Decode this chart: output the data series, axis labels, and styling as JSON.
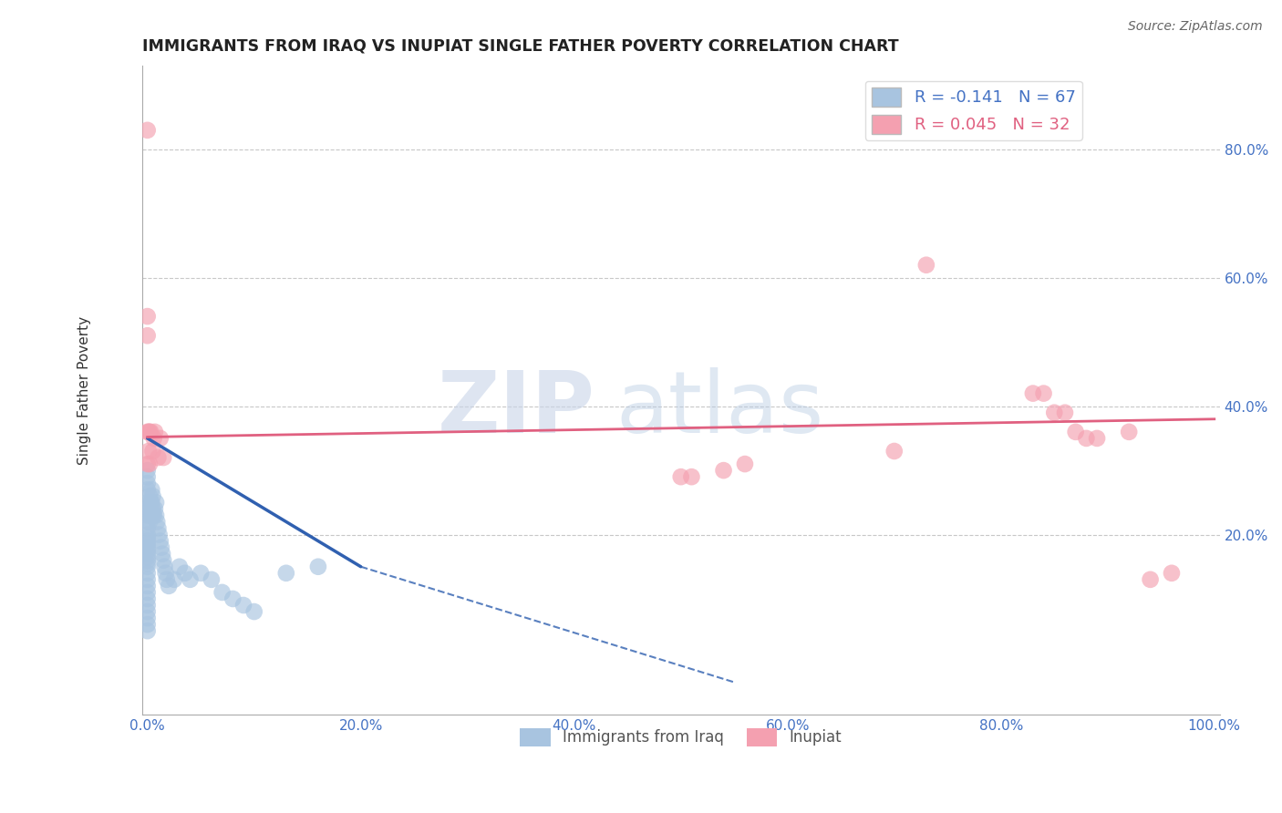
{
  "title": "IMMIGRANTS FROM IRAQ VS INUPIAT SINGLE FATHER POVERTY CORRELATION CHART",
  "source_text": "Source: ZipAtlas.com",
  "xlabel": "",
  "ylabel": "Single Father Poverty",
  "r_iraq": -0.141,
  "n_iraq": 67,
  "r_inupiat": 0.045,
  "n_inupiat": 32,
  "xlim": [
    -0.005,
    1.005
  ],
  "ylim": [
    -0.08,
    0.93
  ],
  "xticks": [
    0.0,
    0.2,
    0.4,
    0.6,
    0.8,
    1.0
  ],
  "yticks": [
    0.0,
    0.2,
    0.4,
    0.6,
    0.8
  ],
  "ytick_labels": [
    "",
    "20.0%",
    "40.0%",
    "60.0%",
    "80.0%"
  ],
  "xtick_labels": [
    "0.0%",
    "20.0%",
    "40.0%",
    "60.0%",
    "80.0%",
    "100.0%"
  ],
  "color_iraq": "#a8c4e0",
  "color_inupiat": "#f4a0b0",
  "color_iraq_line": "#3060b0",
  "color_inupiat_line": "#e06080",
  "color_axis_labels": "#4472c4",
  "watermark_zip": "ZIP",
  "watermark_atlas": "atlas",
  "iraq_x": [
    0.0,
    0.0,
    0.0,
    0.0,
    0.0,
    0.0,
    0.0,
    0.0,
    0.0,
    0.0,
    0.0,
    0.0,
    0.0,
    0.0,
    0.0,
    0.0,
    0.0,
    0.0,
    0.0,
    0.0,
    0.0,
    0.0,
    0.0,
    0.0,
    0.0,
    0.0,
    0.0,
    0.0,
    0.0,
    0.0,
    0.002,
    0.002,
    0.002,
    0.003,
    0.003,
    0.004,
    0.004,
    0.005,
    0.005,
    0.005,
    0.006,
    0.007,
    0.008,
    0.008,
    0.009,
    0.01,
    0.011,
    0.012,
    0.013,
    0.014,
    0.015,
    0.016,
    0.017,
    0.018,
    0.02,
    0.025,
    0.03,
    0.035,
    0.04,
    0.05,
    0.06,
    0.07,
    0.08,
    0.09,
    0.1,
    0.13,
    0.16
  ],
  "iraq_y": [
    0.05,
    0.06,
    0.07,
    0.08,
    0.09,
    0.1,
    0.11,
    0.12,
    0.13,
    0.14,
    0.15,
    0.155,
    0.16,
    0.165,
    0.17,
    0.175,
    0.18,
    0.185,
    0.19,
    0.195,
    0.2,
    0.21,
    0.22,
    0.23,
    0.24,
    0.25,
    0.27,
    0.28,
    0.29,
    0.3,
    0.22,
    0.24,
    0.26,
    0.23,
    0.25,
    0.27,
    0.25,
    0.23,
    0.24,
    0.26,
    0.23,
    0.24,
    0.25,
    0.23,
    0.22,
    0.21,
    0.2,
    0.19,
    0.18,
    0.17,
    0.16,
    0.15,
    0.14,
    0.13,
    0.12,
    0.13,
    0.15,
    0.14,
    0.13,
    0.14,
    0.13,
    0.11,
    0.1,
    0.09,
    0.08,
    0.14,
    0.15
  ],
  "inupiat_x": [
    0.0,
    0.0,
    0.0,
    0.0,
    0.0,
    0.001,
    0.001,
    0.002,
    0.002,
    0.003,
    0.005,
    0.006,
    0.007,
    0.01,
    0.012,
    0.015,
    0.5,
    0.51,
    0.54,
    0.56,
    0.7,
    0.73,
    0.83,
    0.84,
    0.85,
    0.86,
    0.87,
    0.88,
    0.89,
    0.92,
    0.94,
    0.96
  ],
  "inupiat_y": [
    0.83,
    0.54,
    0.51,
    0.36,
    0.31,
    0.36,
    0.33,
    0.36,
    0.31,
    0.36,
    0.33,
    0.35,
    0.36,
    0.32,
    0.35,
    0.32,
    0.29,
    0.29,
    0.3,
    0.31,
    0.33,
    0.62,
    0.42,
    0.42,
    0.39,
    0.39,
    0.36,
    0.35,
    0.35,
    0.36,
    0.13,
    0.14
  ],
  "iraq_line_x0": 0.0,
  "iraq_line_y0": 0.35,
  "iraq_line_x1": 0.2,
  "iraq_line_y1": 0.15,
  "iraq_line_dash_x0": 0.2,
  "iraq_line_dash_y0": 0.15,
  "iraq_line_dash_x1": 0.55,
  "iraq_line_dash_y1": -0.03,
  "inupiat_line_x0": 0.0,
  "inupiat_line_y0": 0.352,
  "inupiat_line_x1": 1.0,
  "inupiat_line_y1": 0.38
}
